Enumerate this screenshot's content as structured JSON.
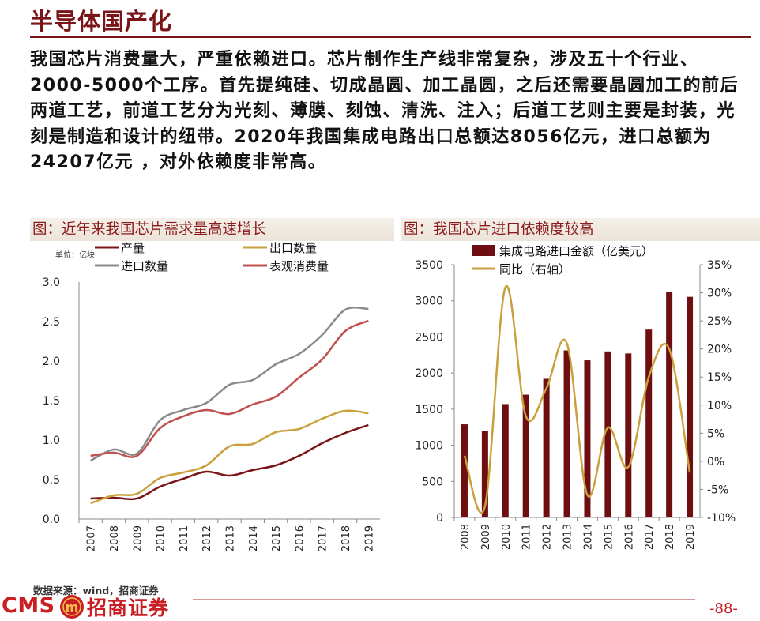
{
  "header": {
    "title": "半导体国产化"
  },
  "intro": {
    "text": "我国芯片消费量大，严重依赖进口。芯片制作生产线非常复杂，涉及五十个行业、2000-5000个工序。首先提纯硅、切成晶圆、加工晶圆，之后还需要晶圆加工的前后两道工艺，前道工艺分为光刻、薄膜、刻蚀、清洗、注入；后道工艺则主要是封装，光刻是制造和设计的纽带。2020年我国集成电路出口总额达8056亿元，进口总额为24207亿元 ，对外依赖度非常高。"
  },
  "colors": {
    "accent": "#7a1416",
    "bar": "#6e0e10",
    "line_gold": "#c9a03c",
    "line_red": "#c0504d",
    "line_gray": "#8a8a8a",
    "line_dark": "#7a1416"
  },
  "chart_data": [
    {
      "type": "line",
      "title": "图：近年来我国芯片需求量高速增长",
      "unit_label": "单位：亿块",
      "xlabel": "",
      "ylabel": "",
      "x": [
        "2007",
        "2008",
        "2009",
        "2010",
        "2011",
        "2012",
        "2013",
        "2014",
        "2015",
        "2016",
        "2017",
        "2018",
        "2019"
      ],
      "ylim": [
        0,
        3.0
      ],
      "yticks": [
        "0.0",
        "0.5",
        "1.0",
        "1.5",
        "2.0",
        "2.5",
        "3.0"
      ],
      "legend_position": "top",
      "series": [
        {
          "name": "产量",
          "color": "#7a1416",
          "values": [
            0.26,
            0.27,
            0.26,
            0.41,
            0.51,
            0.6,
            0.55,
            0.62,
            0.68,
            0.8,
            0.96,
            1.09,
            1.19
          ]
        },
        {
          "name": "出口数量",
          "color": "#c9a03c",
          "values": [
            0.2,
            0.3,
            0.32,
            0.52,
            0.59,
            0.68,
            0.92,
            0.95,
            1.1,
            1.14,
            1.27,
            1.37,
            1.34
          ]
        },
        {
          "name": "进口数量",
          "color": "#8a8a8a",
          "values": [
            0.74,
            0.88,
            0.83,
            1.25,
            1.38,
            1.47,
            1.7,
            1.76,
            1.96,
            2.09,
            2.33,
            2.65,
            2.66
          ]
        },
        {
          "name": "表观消费量",
          "color": "#c0504d",
          "values": [
            0.8,
            0.84,
            0.8,
            1.15,
            1.3,
            1.38,
            1.33,
            1.45,
            1.55,
            1.79,
            2.02,
            2.38,
            2.51
          ]
        }
      ]
    },
    {
      "type": "bar",
      "title": "图：我国芯片进口依赖度较高",
      "xlabel": "",
      "ylabel": "",
      "categories": [
        "2008",
        "2009",
        "2010",
        "2011",
        "2012",
        "2013",
        "2014",
        "2015",
        "2016",
        "2017",
        "2018",
        "2019"
      ],
      "ylim": [
        0,
        3500
      ],
      "yticks": [
        "0",
        "500",
        "1000",
        "1500",
        "2000",
        "2500",
        "3000",
        "3500"
      ],
      "y2lim": [
        -10,
        35
      ],
      "y2ticks": [
        "-10%",
        "-5%",
        "0%",
        "5%",
        "10%",
        "15%",
        "20%",
        "25%",
        "30%",
        "35%"
      ],
      "legend_position": "top",
      "series": [
        {
          "name": "集成电路进口金额（亿美元）",
          "type": "bar",
          "axis": "left",
          "color": "#6e0e10",
          "values": [
            1290,
            1200,
            1570,
            1700,
            1920,
            2313,
            2176,
            2299,
            2271,
            2601,
            3121,
            3055
          ]
        },
        {
          "name": "同比（右轴）",
          "type": "line",
          "axis": "right",
          "color": "#c9a03c",
          "values": [
            1,
            -8,
            31,
            8,
            13,
            21,
            -6,
            6,
            -1,
            15,
            20,
            -2
          ]
        }
      ]
    }
  ],
  "footer": {
    "source": "数据来源：wind，招商证券",
    "brand_prefix": "CMS",
    "brand_name": "招商证券",
    "logo_mark": "m",
    "page_number": "-88-"
  }
}
